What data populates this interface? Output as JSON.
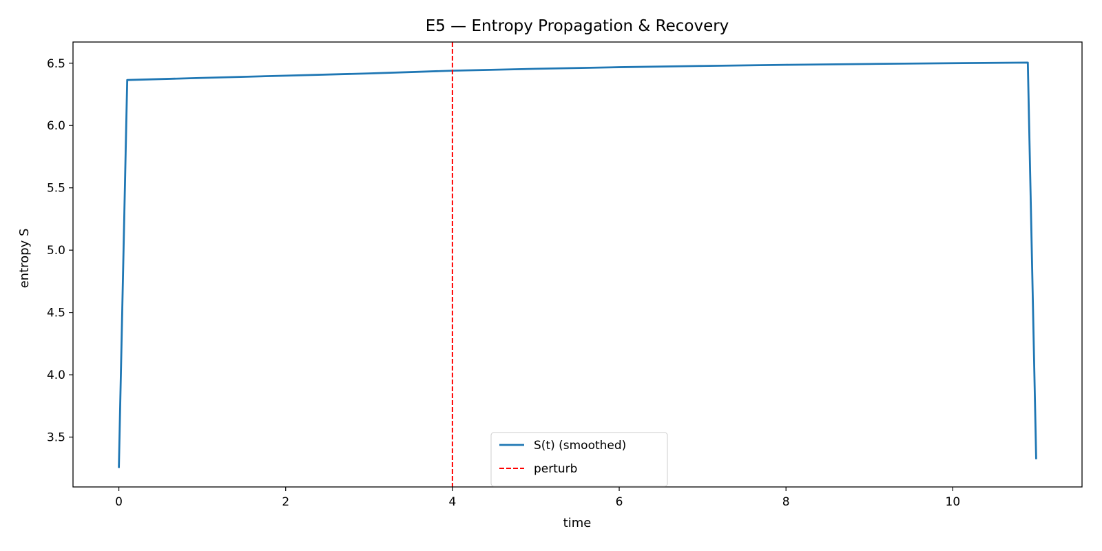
{
  "chart_data": {
    "type": "line",
    "title": "E5 — Entropy Propagation & Recovery",
    "xlabel": "time",
    "ylabel": "entropy S",
    "xlim": [
      -0.55,
      11.55
    ],
    "ylim": [
      3.1,
      6.67
    ],
    "x_ticks": [
      0,
      2,
      4,
      6,
      8,
      10
    ],
    "y_ticks": [
      3.5,
      4.0,
      4.5,
      5.0,
      5.5,
      6.0,
      6.5
    ],
    "grid": false,
    "legend_position": "lower-center",
    "series": [
      {
        "name": "S(t) (smoothed)",
        "color": "#1f77b4",
        "style": "solid",
        "x": [
          0,
          0.1,
          1,
          2,
          3,
          4,
          5,
          6,
          7,
          8,
          9,
          10,
          10.9,
          11
        ],
        "y": [
          3.26,
          6.365,
          6.382,
          6.4,
          6.418,
          6.44,
          6.455,
          6.468,
          6.478,
          6.487,
          6.494,
          6.5,
          6.505,
          3.33
        ]
      }
    ],
    "vlines": [
      {
        "name": "perturb",
        "x": 4,
        "color": "#ff0000",
        "style": "dashed"
      }
    ]
  }
}
